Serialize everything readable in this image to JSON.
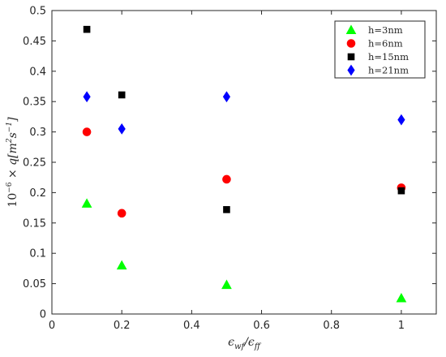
{
  "chart_data": {
    "type": "scatter",
    "xlabel": "εwf/εff",
    "ylabel": "10⁻⁶ × q[m²s⁻¹]",
    "xlim": [
      0,
      1.1
    ],
    "ylim": [
      0,
      0.5
    ],
    "xticks": [
      "0",
      "0.2",
      "0.4",
      "0.6",
      "0.8",
      "1"
    ],
    "yticks": [
      "0",
      "0.05",
      "0.1",
      "0.15",
      "0.2",
      "0.25",
      "0.3",
      "0.35",
      "0.4",
      "0.45",
      "0.5"
    ],
    "grid": false,
    "legend_position": "top-right",
    "series": [
      {
        "name": "h=3nm",
        "marker": "triangle",
        "color": "#00ff00",
        "x": [
          0.1,
          0.2,
          0.5,
          1.0
        ],
        "y": [
          0.182,
          0.08,
          0.048,
          0.026
        ]
      },
      {
        "name": "h=6nm",
        "marker": "circle",
        "color": "#ff0000",
        "x": [
          0.1,
          0.2,
          0.5,
          1.0
        ],
        "y": [
          0.3,
          0.166,
          0.222,
          0.208
        ]
      },
      {
        "name": "h=15nm",
        "marker": "square",
        "color": "#000000",
        "x": [
          0.1,
          0.2,
          0.5,
          1.0
        ],
        "y": [
          0.469,
          0.361,
          0.172,
          0.203
        ]
      },
      {
        "name": "h=21nm",
        "marker": "diamond",
        "color": "#0000ff",
        "x": [
          0.1,
          0.2,
          0.5,
          1.0
        ],
        "y": [
          0.358,
          0.305,
          0.358,
          0.32
        ]
      }
    ]
  }
}
